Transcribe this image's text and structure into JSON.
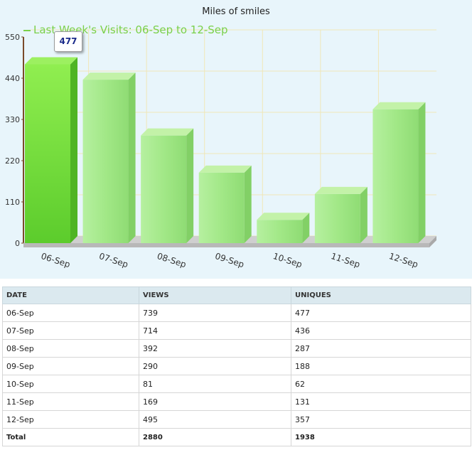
{
  "chart_data": {
    "type": "bar",
    "title": "Miles of smiles",
    "legend": "Last Week's Visits: 06-Sep to 12-Sep",
    "legend_position": "top-left",
    "categories": [
      "06-Sep",
      "07-Sep",
      "08-Sep",
      "09-Sep",
      "10-Sep",
      "11-Sep",
      "12-Sep"
    ],
    "series": [
      {
        "name": "Last Week's Visits: 06-Sep to 12-Sep",
        "values": [
          477,
          436,
          287,
          188,
          62,
          131,
          357
        ]
      }
    ],
    "ylim": [
      0,
      550
    ],
    "yticks": [
      "0",
      "110",
      "220",
      "330",
      "440",
      "550"
    ],
    "grid": true,
    "highlighted_index": 0,
    "tooltip": "477",
    "colors": {
      "bar": "#a2e887",
      "bar_highlight": "#74d83f",
      "background": "#e8f5fb",
      "grid": "#f0e6b8"
    }
  },
  "table": {
    "headers": [
      "DATE",
      "VIEWS",
      "UNIQUES"
    ],
    "rows": [
      [
        "06-Sep",
        "739",
        "477"
      ],
      [
        "07-Sep",
        "714",
        "436"
      ],
      [
        "08-Sep",
        "392",
        "287"
      ],
      [
        "09-Sep",
        "290",
        "188"
      ],
      [
        "10-Sep",
        "81",
        "62"
      ],
      [
        "11-Sep",
        "169",
        "131"
      ],
      [
        "12-Sep",
        "495",
        "357"
      ]
    ],
    "total": [
      "Total",
      "2880",
      "1938"
    ]
  }
}
